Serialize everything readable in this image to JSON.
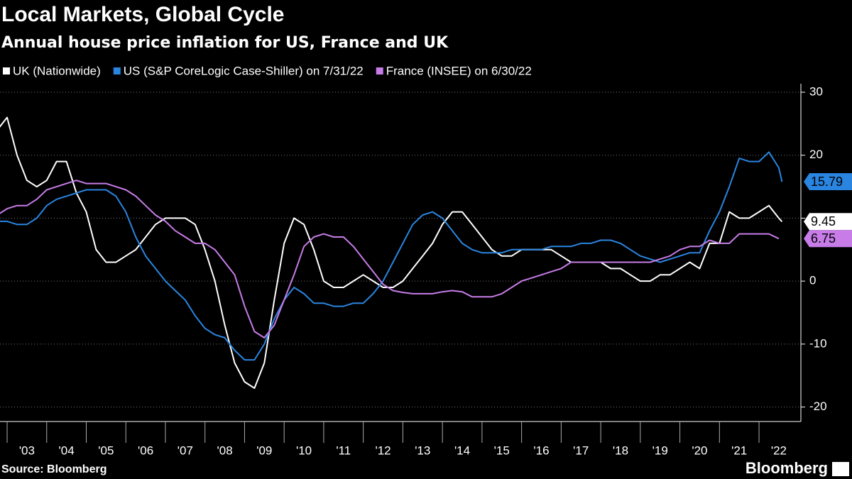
{
  "chart_data": {
    "type": "line",
    "title": "Local Markets, Global Cycle",
    "subtitle": "Annual house price inflation for US, France and UK",
    "source": "Source: Bloomberg",
    "brand": "Bloomberg",
    "x": [
      2002.75,
      2003,
      2003.25,
      2003.5,
      2003.75,
      2004,
      2004.25,
      2004.5,
      2004.75,
      2005,
      2005.25,
      2005.5,
      2005.75,
      2006,
      2006.25,
      2006.5,
      2006.75,
      2007,
      2007.25,
      2007.5,
      2007.75,
      2008,
      2008.25,
      2008.5,
      2008.75,
      2009,
      2009.25,
      2009.5,
      2009.75,
      2010,
      2010.25,
      2010.5,
      2010.75,
      2011,
      2011.25,
      2011.5,
      2011.75,
      2012,
      2012.25,
      2012.5,
      2012.75,
      2013,
      2013.25,
      2013.5,
      2013.75,
      2014,
      2014.25,
      2014.5,
      2014.75,
      2015,
      2015.25,
      2015.5,
      2015.75,
      2016,
      2016.25,
      2016.5,
      2016.75,
      2017,
      2017.25,
      2017.5,
      2017.75,
      2018,
      2018.25,
      2018.5,
      2018.75,
      2019,
      2019.25,
      2019.5,
      2019.75,
      2020,
      2020.25,
      2020.5,
      2020.75,
      2021,
      2021.25,
      2021.5,
      2021.75,
      2022,
      2022.25,
      2022.5,
      2022.58
    ],
    "series": [
      {
        "name": "UK (Nationwide)",
        "color": "#ffffff",
        "values": [
          24,
          26,
          20,
          16,
          15,
          16,
          19,
          19,
          14,
          11,
          5,
          3,
          3,
          4,
          5,
          7,
          9,
          10,
          10,
          10,
          9,
          5,
          0,
          -7,
          -13,
          -16,
          -17,
          -13,
          -3,
          6,
          10,
          9,
          5,
          0,
          -1,
          -1,
          0,
          1,
          0,
          -1,
          -1,
          0,
          2,
          4,
          6,
          9,
          11,
          11,
          9,
          7,
          5,
          4,
          4,
          5,
          5,
          5,
          5,
          4,
          3,
          3,
          3,
          3,
          2,
          2,
          1,
          0,
          0,
          1,
          1,
          2,
          3,
          2,
          6,
          6,
          11,
          10,
          10,
          11,
          12,
          10,
          9.45
        ]
      },
      {
        "name": "US (S&P CoreLogic Case-Shiller) on 7/31/22",
        "color": "#2a85e0",
        "values": [
          9.5,
          9.5,
          9,
          9,
          10,
          12,
          13,
          13.5,
          14,
          14.5,
          14.5,
          14.5,
          13.5,
          11,
          7,
          4,
          2,
          0,
          -1.5,
          -3,
          -5.5,
          -7.5,
          -8.5,
          -9,
          -11,
          -12.5,
          -12.5,
          -10,
          -6,
          -3,
          -1,
          -2,
          -3.5,
          -3.5,
          -4,
          -4,
          -3.5,
          -3.5,
          -2,
          0,
          3,
          6,
          9,
          10.5,
          11,
          10,
          8,
          6,
          5,
          4.5,
          4.5,
          4.5,
          5,
          5,
          5,
          5,
          5.5,
          5.5,
          5.5,
          6,
          6,
          6.5,
          6.5,
          6,
          5,
          4,
          3.5,
          3,
          3.5,
          4,
          4.5,
          4.5,
          8,
          11,
          15,
          19.5,
          19,
          19,
          20.5,
          18,
          15.79
        ]
      },
      {
        "name": "France (INSEE) on 6/30/22",
        "color": "#c77ce8",
        "values": [
          10.5,
          11.5,
          12,
          12,
          13,
          14.5,
          15,
          15.5,
          16,
          15.5,
          15.5,
          15.5,
          15,
          14.5,
          13.5,
          12,
          10.5,
          9.5,
          8,
          7,
          6,
          6,
          5,
          3,
          1,
          -4,
          -8,
          -9,
          -7,
          -3,
          1,
          5.5,
          7,
          7.5,
          7,
          7,
          5.5,
          3.5,
          1.5,
          -0.5,
          -1.5,
          -1.8,
          -2,
          -2,
          -2,
          -1.7,
          -1.5,
          -1.7,
          -2.5,
          -2.5,
          -2.5,
          -2,
          -1,
          0,
          0.5,
          1,
          1.5,
          2,
          3,
          3,
          3,
          3,
          3,
          3,
          3,
          3,
          3,
          3.5,
          4,
          5,
          5.5,
          5.5,
          6.5,
          6,
          6,
          7.5,
          7.5,
          7.5,
          7.5,
          6.75,
          null
        ]
      }
    ],
    "xlim": [
      2002.82,
      2022.95
    ],
    "xticks": [
      {
        "value": 2003,
        "label": "'03"
      },
      {
        "value": 2004,
        "label": "'04"
      },
      {
        "value": 2005,
        "label": "'05"
      },
      {
        "value": 2006,
        "label": "'06"
      },
      {
        "value": 2007,
        "label": "'07"
      },
      {
        "value": 2008,
        "label": "'08"
      },
      {
        "value": 2009,
        "label": "'09"
      },
      {
        "value": 2010,
        "label": "'10"
      },
      {
        "value": 2011,
        "label": "'11"
      },
      {
        "value": 2012,
        "label": "'12"
      },
      {
        "value": 2013,
        "label": "'13"
      },
      {
        "value": 2014,
        "label": "'14"
      },
      {
        "value": 2015,
        "label": "'15"
      },
      {
        "value": 2016,
        "label": "'16"
      },
      {
        "value": 2017,
        "label": "'17"
      },
      {
        "value": 2018,
        "label": "'18"
      },
      {
        "value": 2019,
        "label": "'19"
      },
      {
        "value": 2020,
        "label": "'20"
      },
      {
        "value": 2021,
        "label": "'21"
      },
      {
        "value": 2022,
        "label": "'22"
      }
    ],
    "ylim": [
      -22.3,
      31.35
    ],
    "yticks": [
      30,
      20,
      10,
      0,
      -10,
      -20
    ],
    "grid": true
  }
}
